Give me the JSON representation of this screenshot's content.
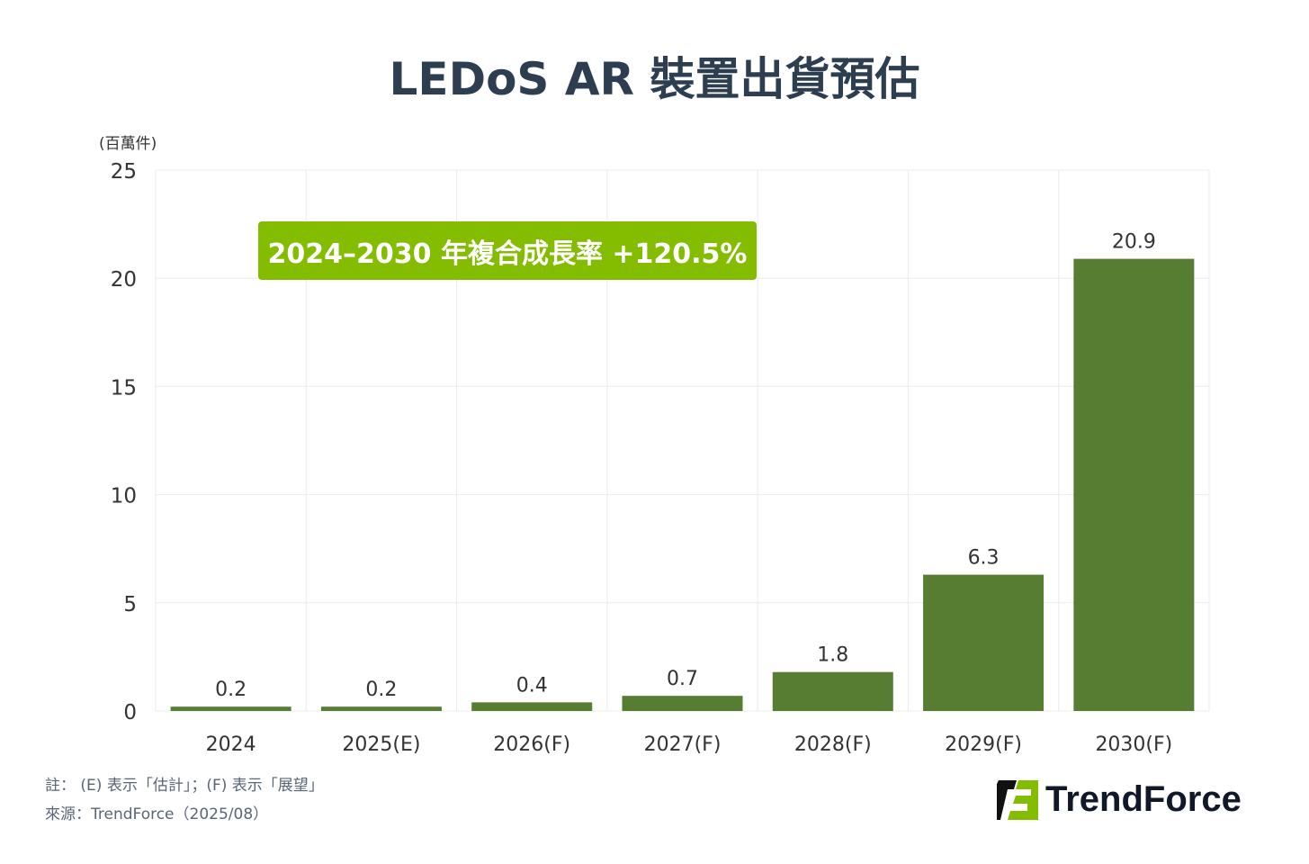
{
  "title": "LEDoS AR 裝置出貨預估",
  "unit": "(百萬件)",
  "cagr_badge": "2024–2030 年複合成長率 +120.5%",
  "notes": {
    "note": "註： (E) 表示「估計」；(F) 表示「展望」",
    "source": "來源：TrendForce（2025/08）"
  },
  "logo": {
    "text": "TrendForce",
    "colors": {
      "green": "#84bd00",
      "black": "#111111"
    }
  },
  "chart_data": {
    "type": "bar",
    "title": "LEDoS AR 裝置出貨預估",
    "ylabel": "(百萬件)",
    "categories": [
      "2024",
      "2025(E)",
      "2026(F)",
      "2027(F)",
      "2028(F)",
      "2029(F)",
      "2030(F)"
    ],
    "values": [
      0.2,
      0.2,
      0.4,
      0.7,
      1.8,
      6.3,
      20.9
    ],
    "data_labels": [
      "0.2",
      "0.2",
      "0.4",
      "0.7",
      "1.8",
      "6.3",
      "20.9"
    ],
    "ylim": [
      0,
      25
    ],
    "yticks": [
      0,
      5,
      10,
      15,
      20,
      25
    ],
    "grid": true,
    "bar_color": "#567d32"
  }
}
